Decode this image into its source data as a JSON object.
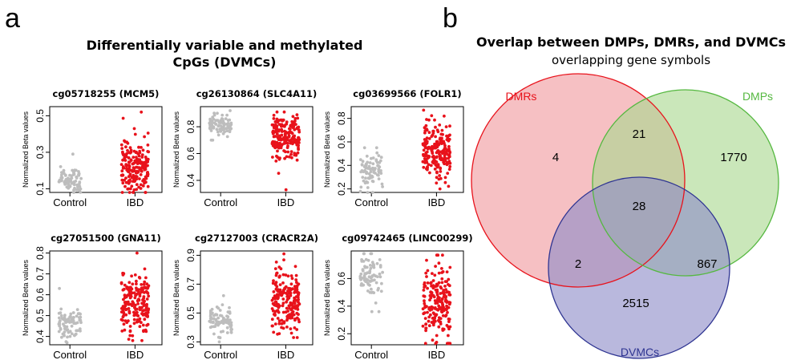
{
  "panel_a": {
    "letter": "a",
    "title_line1": "Differentially variable and methylated",
    "title_line2": "CpGs (DVMCs)"
  },
  "panel_b": {
    "letter": "b",
    "title": "Overlap between DMPs, DMRs, and DVMCs",
    "subtitle": "overlapping gene symbols"
  },
  "colors": {
    "control": "#bdbdbd",
    "ibd": "#e8121b",
    "dmrs_fill": "#f09a9e",
    "dmrs_stroke": "#e8121b",
    "dmps_fill": "#a9d88f",
    "dmps_stroke": "#55b840",
    "dvmcs_fill": "#8e8cc8",
    "dvmcs_stroke": "#2f3592",
    "dmrs_label": "#e8121b",
    "dmps_label": "#55b840",
    "dvmcs_label": "#2f3592"
  },
  "chart_data": [
    {
      "type": "scatter",
      "title": "cg05718255 (MCM5)",
      "ylabel": "Normalized Beta values",
      "categories": [
        "Control",
        "IBD"
      ],
      "ylim": [
        0.08,
        0.55
      ],
      "yticks": [
        0.1,
        0.3,
        0.5
      ],
      "series": [
        {
          "name": "Control",
          "n": 80,
          "center": 0.15,
          "spread": 0.035,
          "min": 0.08,
          "max": 0.29
        },
        {
          "name": "IBD",
          "n": 200,
          "center": 0.22,
          "spread": 0.07,
          "min": 0.08,
          "max": 0.52
        }
      ]
    },
    {
      "type": "scatter",
      "title": "cg26130864 (SLC4A11)",
      "ylabel": "Normalized Beta values",
      "categories": [
        "Control",
        "IBD"
      ],
      "ylim": [
        0.31,
        0.95
      ],
      "yticks": [
        0.4,
        0.6,
        0.8
      ],
      "series": [
        {
          "name": "Control",
          "n": 80,
          "center": 0.82,
          "spread": 0.04,
          "min": 0.7,
          "max": 0.92
        },
        {
          "name": "IBD",
          "n": 200,
          "center": 0.72,
          "spread": 0.08,
          "min": 0.33,
          "max": 0.91
        }
      ]
    },
    {
      "type": "scatter",
      "title": "cg03699566 (FOLR1)",
      "ylabel": "Normalized Beta values",
      "categories": [
        "Control",
        "IBD"
      ],
      "ylim": [
        0.17,
        0.9
      ],
      "yticks": [
        0.2,
        0.4,
        0.6,
        0.8
      ],
      "series": [
        {
          "name": "Control",
          "n": 80,
          "center": 0.36,
          "spread": 0.08,
          "min": 0.17,
          "max": 0.55
        },
        {
          "name": "IBD",
          "n": 200,
          "center": 0.5,
          "spread": 0.12,
          "min": 0.2,
          "max": 0.87
        }
      ]
    },
    {
      "type": "scatter",
      "title": "cg27051500 (GNA11)",
      "ylabel": "Normalized Beta values",
      "categories": [
        "Control",
        "IBD"
      ],
      "ylim": [
        0.36,
        0.81
      ],
      "yticks": [
        0.4,
        0.5,
        0.6,
        0.7,
        0.8
      ],
      "series": [
        {
          "name": "Control",
          "n": 80,
          "center": 0.46,
          "spread": 0.04,
          "min": 0.37,
          "max": 0.63
        },
        {
          "name": "IBD",
          "n": 200,
          "center": 0.56,
          "spread": 0.07,
          "min": 0.38,
          "max": 0.8
        }
      ]
    },
    {
      "type": "scatter",
      "title": "cg27127003 (CRACR2A)",
      "ylabel": "Normalized Beta values",
      "categories": [
        "Control",
        "IBD"
      ],
      "ylim": [
        0.28,
        0.93
      ],
      "yticks": [
        0.3,
        0.5,
        0.7,
        0.9
      ],
      "series": [
        {
          "name": "Control",
          "n": 80,
          "center": 0.45,
          "spread": 0.05,
          "min": 0.3,
          "max": 0.62
        },
        {
          "name": "IBD",
          "n": 200,
          "center": 0.58,
          "spread": 0.11,
          "min": 0.33,
          "max": 0.91
        }
      ]
    },
    {
      "type": "scatter",
      "title": "cg09742465 (LINC00299)",
      "ylabel": "Normalized Beta values",
      "categories": [
        "Control",
        "IBD"
      ],
      "ylim": [
        0.12,
        0.8
      ],
      "yticks": [
        0.2,
        0.4,
        0.6
      ],
      "series": [
        {
          "name": "Control",
          "n": 80,
          "center": 0.62,
          "spread": 0.07,
          "min": 0.36,
          "max": 0.78
        },
        {
          "name": "IBD",
          "n": 200,
          "center": 0.42,
          "spread": 0.13,
          "min": 0.13,
          "max": 0.77
        }
      ]
    },
    {
      "type": "venn",
      "sets": [
        "DMRs",
        "DMPs",
        "DVMCs"
      ],
      "regions": [
        {
          "sets": [
            "DMRs"
          ],
          "value": 4
        },
        {
          "sets": [
            "DMPs"
          ],
          "value": 1770
        },
        {
          "sets": [
            "DVMCs"
          ],
          "value": 2515
        },
        {
          "sets": [
            "DMRs",
            "DMPs"
          ],
          "value": 21
        },
        {
          "sets": [
            "DMRs",
            "DVMCs"
          ],
          "value": 2
        },
        {
          "sets": [
            "DMPs",
            "DVMCs"
          ],
          "value": 867
        },
        {
          "sets": [
            "DMRs",
            "DMPs",
            "DVMCs"
          ],
          "value": 28
        }
      ]
    }
  ]
}
